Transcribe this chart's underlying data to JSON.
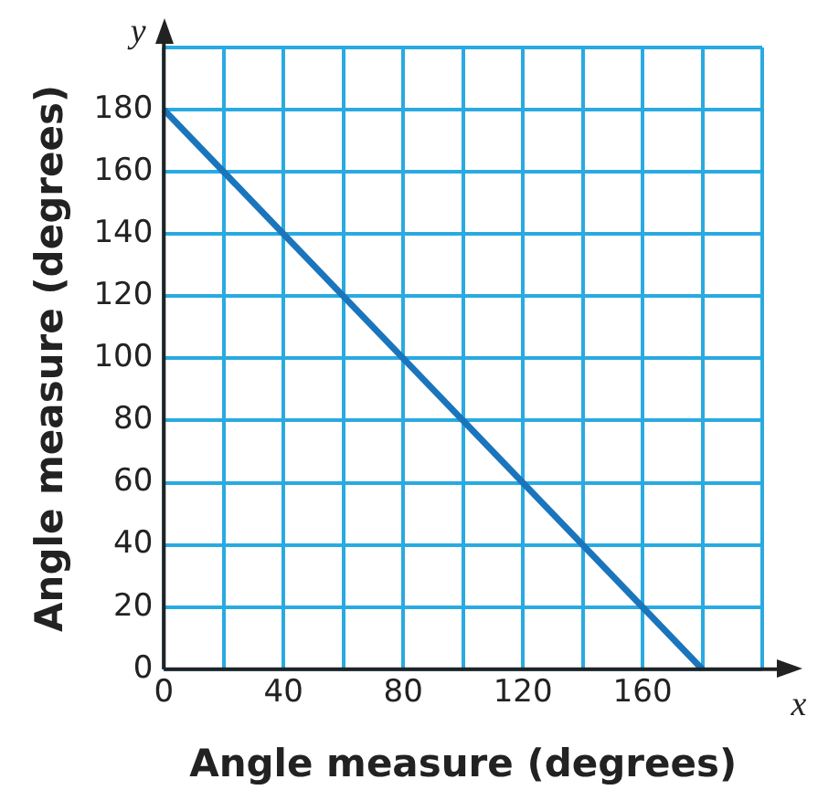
{
  "chart_data": {
    "type": "line",
    "xlabel": "Angle measure (degrees)",
    "ylabel": "Angle measure (degrees)",
    "annotations": [
      "y",
      "x"
    ],
    "x": [
      0,
      180
    ],
    "series": [
      {
        "color": "#1a75bc",
        "values": [
          180,
          0
        ]
      }
    ],
    "xlim": [
      0,
      200
    ],
    "ylim": [
      0,
      200
    ],
    "xticks": [
      0,
      {
        "value": 20,
        "label": null
      },
      40,
      {
        "value": 60,
        "label": null
      },
      80,
      {
        "value": 100,
        "label": null
      },
      120,
      {
        "value": 140,
        "label": null
      },
      160,
      {
        "value": 180,
        "label": null
      },
      {
        "value": 200,
        "label": null
      }
    ],
    "yticks": [
      0,
      20,
      40,
      60,
      80,
      100,
      120,
      140,
      160,
      180,
      {
        "value": 200,
        "label": null
      }
    ],
    "grid": true,
    "legend": false,
    "marker": "none",
    "line_style": "solid"
  }
}
